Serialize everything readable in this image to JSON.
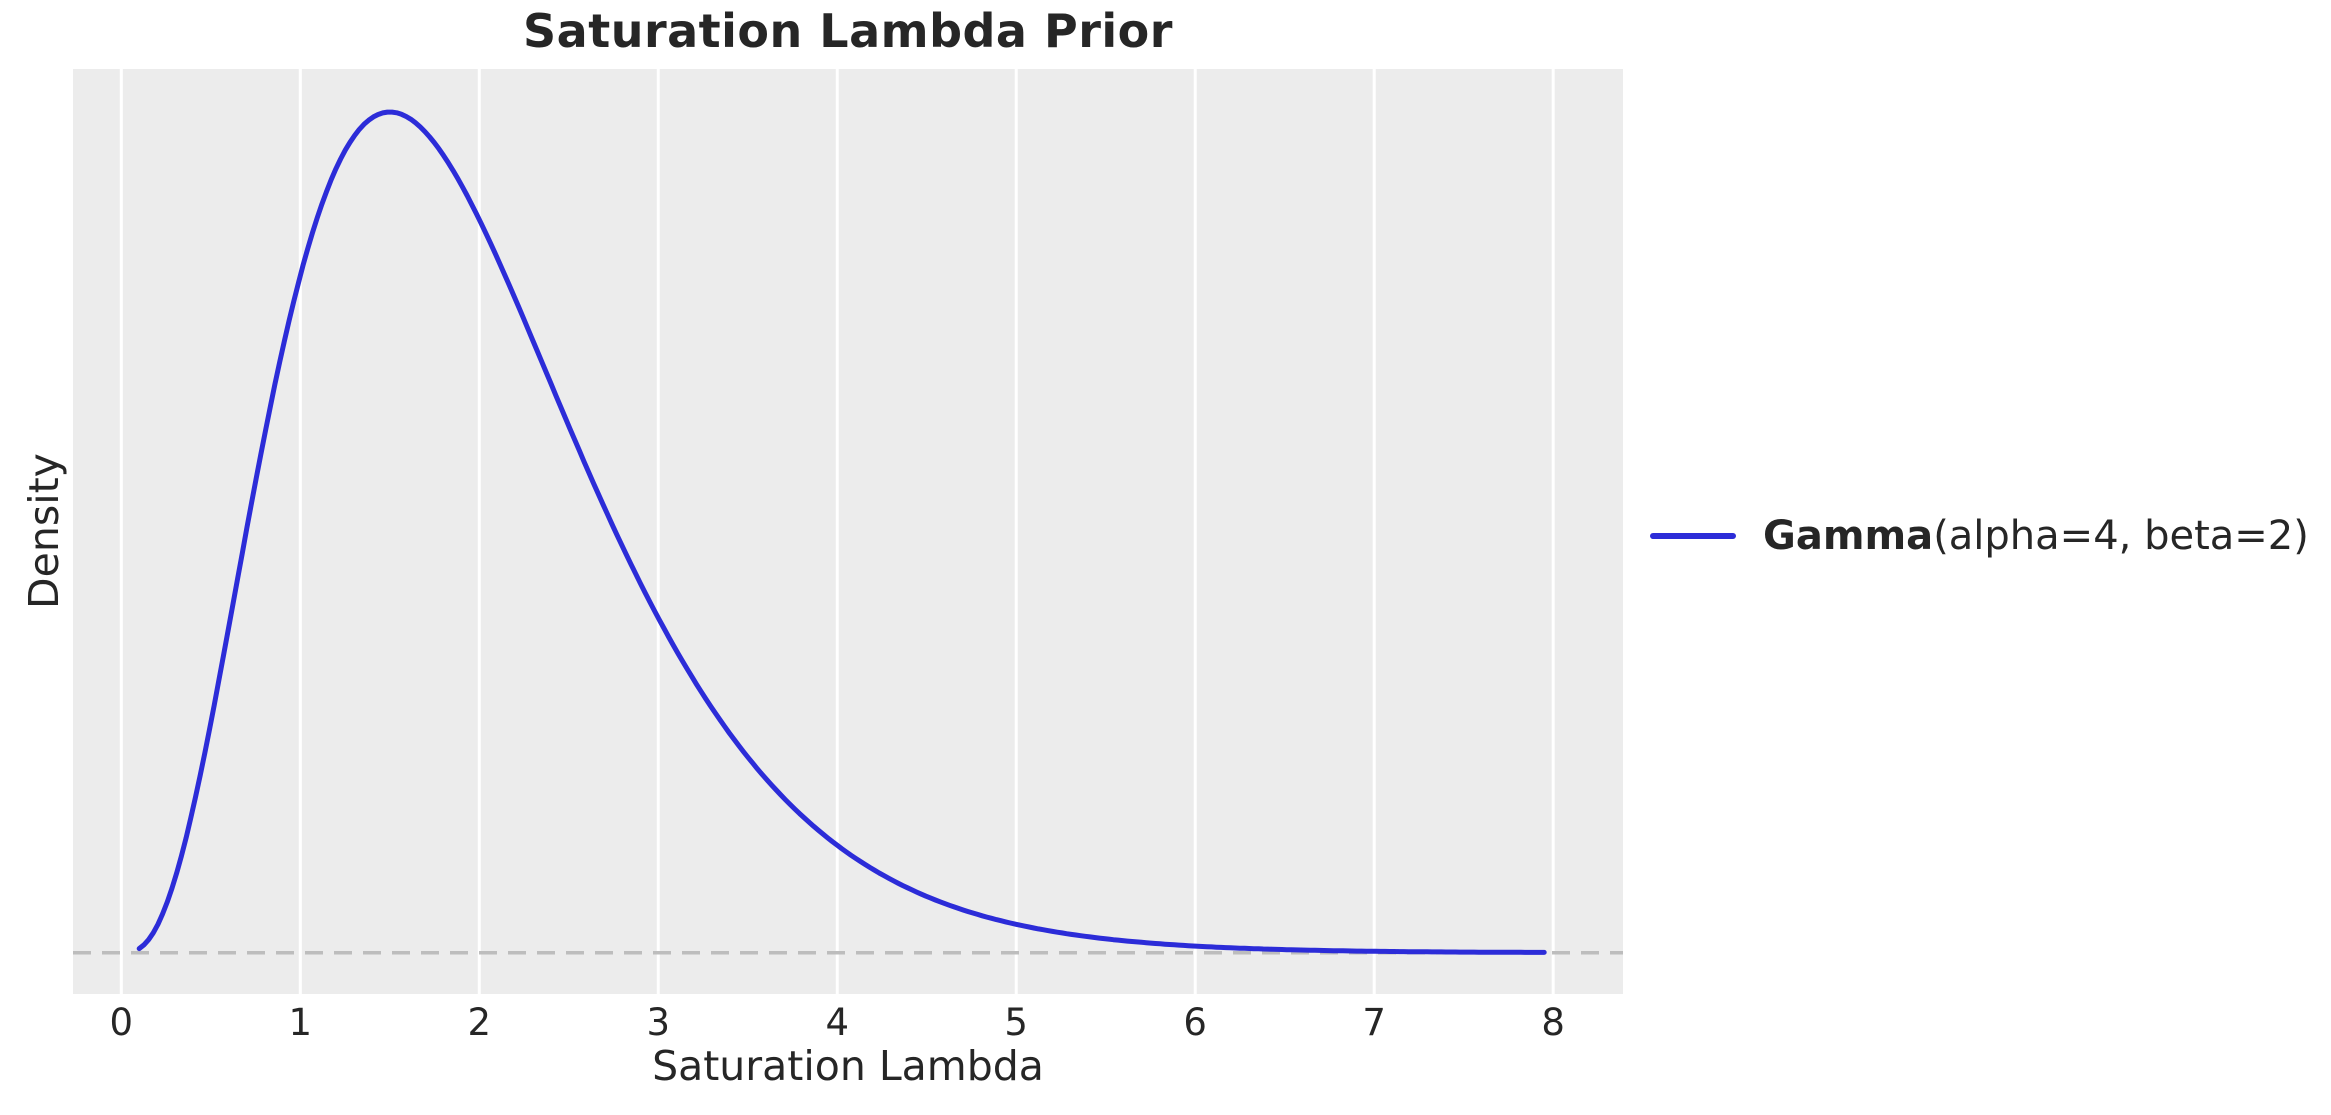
{
  "title": "Saturation Lambda Prior",
  "axes": {
    "x_label": "Saturation Lambda",
    "y_label": "Density"
  },
  "legend": {
    "name_bold": "Gamma",
    "name_params": "(alpha=4, beta=2)",
    "full_label": "Gamma(alpha=4, beta=2)",
    "swatch_color": "#2c2cd8",
    "position": "outside-right"
  },
  "colors": {
    "panel_background": "#ececec",
    "figure_background": "#ffffff",
    "gridline": "#ffffff",
    "text": "#262626",
    "curve": "#2c2cd8",
    "zero_line": "#bdbdbd"
  },
  "chart_data": {
    "type": "line",
    "title": "Saturation Lambda Prior",
    "xlabel": "Saturation Lambda",
    "ylabel": "Density",
    "x_ticks": [
      0,
      1,
      2,
      3,
      4,
      5,
      6,
      7,
      8
    ],
    "y_tick_labels": [],
    "xlim": [
      -0.27,
      8.39
    ],
    "ylim": [
      -0.022,
      0.471
    ],
    "grid": "vertical-only",
    "legend_position": "outside-right",
    "reference_line": {
      "y": 0,
      "style": "dashed",
      "color": "#bdbdbd"
    },
    "series": [
      {
        "name": "Gamma(alpha=4, beta=2)",
        "distribution": "gamma",
        "alpha": 4,
        "beta": 2,
        "x_range": [
          0.1,
          7.95
        ],
        "peak": {
          "x": 1.5,
          "density": 0.4481
        },
        "color": "#2c2cd8",
        "points": [
          {
            "x": 0.1,
            "y": 0.0022
          },
          {
            "x": 0.25,
            "y": 0.0253
          },
          {
            "x": 0.5,
            "y": 0.1226
          },
          {
            "x": 0.75,
            "y": 0.251
          },
          {
            "x": 1.0,
            "y": 0.3609
          },
          {
            "x": 1.25,
            "y": 0.4275
          },
          {
            "x": 1.5,
            "y": 0.4481
          },
          {
            "x": 1.75,
            "y": 0.4316
          },
          {
            "x": 2.0,
            "y": 0.3907
          },
          {
            "x": 2.25,
            "y": 0.3374
          },
          {
            "x": 2.5,
            "y": 0.2807
          },
          {
            "x": 2.75,
            "y": 0.2267
          },
          {
            "x": 3.0,
            "y": 0.1785
          },
          {
            "x": 3.25,
            "y": 0.1376
          },
          {
            "x": 3.5,
            "y": 0.1043
          },
          {
            "x": 3.75,
            "y": 0.0778
          },
          {
            "x": 4.0,
            "y": 0.0573
          },
          {
            "x": 4.25,
            "y": 0.0417
          },
          {
            "x": 4.5,
            "y": 0.03
          },
          {
            "x": 4.75,
            "y": 0.0214
          },
          {
            "x": 5.0,
            "y": 0.0151
          },
          {
            "x": 5.5,
            "y": 0.0074
          },
          {
            "x": 6.0,
            "y": 0.0035
          },
          {
            "x": 6.5,
            "y": 0.0017
          },
          {
            "x": 7.0,
            "y": 0.0008
          },
          {
            "x": 7.5,
            "y": 0.0003
          },
          {
            "x": 7.95,
            "y": 0.0002
          }
        ]
      }
    ]
  }
}
